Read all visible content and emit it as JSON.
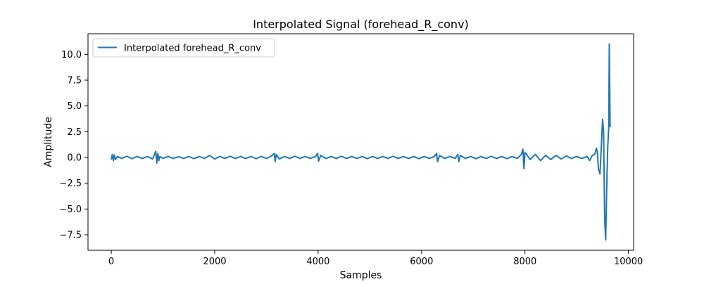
{
  "chart_data": {
    "type": "line",
    "title": "Interpolated Signal (forehead_R_conv)",
    "xlabel": "Samples",
    "ylabel": "Amplitude",
    "xlim": [
      -450,
      10100
    ],
    "ylim": [
      -9.0,
      12.0
    ],
    "xticks": [
      0,
      2000,
      4000,
      6000,
      8000,
      10000
    ],
    "xtick_labels": [
      "0",
      "2000",
      "4000",
      "6000",
      "8000",
      "10000"
    ],
    "yticks": [
      -7.5,
      -5.0,
      -2.5,
      0.0,
      2.5,
      5.0,
      7.5,
      10.0
    ],
    "ytick_labels": [
      "−7.5",
      "−5.0",
      "−2.5",
      "0.0",
      "2.5",
      "5.0",
      "7.5",
      "10.0"
    ],
    "grid": false,
    "legend_position": "top-left",
    "series": [
      {
        "name": "Interpolated forehead_R_conv",
        "color": "#1f77b4",
        "x": [
          0,
          20,
          40,
          60,
          80,
          120,
          200,
          300,
          400,
          500,
          600,
          700,
          800,
          860,
          880,
          900,
          920,
          940,
          1000,
          1100,
          1200,
          1300,
          1400,
          1500,
          1600,
          1700,
          1800,
          1900,
          2000,
          2100,
          2200,
          2300,
          2400,
          2500,
          2600,
          2700,
          2800,
          2900,
          3000,
          3100,
          3150,
          3170,
          3190,
          3250,
          3350,
          3450,
          3550,
          3650,
          3750,
          3850,
          3950,
          3990,
          4010,
          4050,
          4150,
          4250,
          4350,
          4450,
          4550,
          4650,
          4750,
          4850,
          4950,
          5050,
          5150,
          5250,
          5350,
          5450,
          5550,
          5650,
          5750,
          5850,
          5950,
          6050,
          6150,
          6250,
          6290,
          6310,
          6350,
          6450,
          6550,
          6650,
          6700,
          6720,
          6750,
          6850,
          6950,
          7050,
          7150,
          7250,
          7350,
          7450,
          7550,
          7650,
          7750,
          7850,
          7930,
          7960,
          7980,
          8000,
          8100,
          8200,
          8300,
          8400,
          8500,
          8600,
          8700,
          8800,
          8900,
          9000,
          9100,
          9200,
          9250,
          9300,
          9350,
          9380,
          9400,
          9420,
          9450,
          9480,
          9500,
          9520,
          9540,
          9560,
          9580,
          9600,
          9620,
          9630,
          9640,
          9645,
          9650
        ],
        "y": [
          -0.2,
          0.3,
          -0.3,
          0.25,
          -0.2,
          0.1,
          -0.1,
          0.12,
          -0.12,
          0.1,
          -0.1,
          0.1,
          -0.15,
          0.6,
          -0.55,
          0.4,
          -0.3,
          0.1,
          -0.1,
          0.1,
          -0.1,
          0.08,
          -0.1,
          0.1,
          -0.12,
          0.1,
          -0.1,
          0.2,
          -0.15,
          0.1,
          -0.1,
          0.12,
          -0.1,
          0.1,
          -0.1,
          0.1,
          -0.12,
          0.1,
          -0.1,
          0.15,
          0.4,
          -0.4,
          0.3,
          -0.15,
          0.1,
          -0.1,
          0.12,
          -0.1,
          0.1,
          -0.1,
          0.1,
          0.4,
          -0.35,
          0.2,
          -0.1,
          0.1,
          -0.1,
          0.12,
          -0.1,
          0.1,
          -0.1,
          0.1,
          -0.12,
          0.1,
          -0.1,
          0.1,
          -0.1,
          0.12,
          -0.1,
          0.1,
          -0.1,
          0.1,
          -0.12,
          0.1,
          -0.1,
          0.1,
          0.4,
          -0.4,
          0.2,
          -0.1,
          0.1,
          -0.1,
          0.3,
          -0.4,
          0.2,
          -0.1,
          0.1,
          -0.12,
          0.1,
          -0.1,
          0.12,
          -0.1,
          0.1,
          -0.12,
          0.1,
          -0.1,
          0.3,
          0.8,
          -1.1,
          0.5,
          -0.2,
          0.3,
          -0.3,
          0.2,
          -0.2,
          0.2,
          -0.15,
          0.15,
          -0.1,
          0.1,
          -0.1,
          0.1,
          -0.3,
          0.2,
          0.3,
          0.9,
          0.5,
          -1.1,
          -1.6,
          1.5,
          3.7,
          2.5,
          -6.0,
          -8.0,
          -3.0,
          1.0,
          3.0,
          11.0,
          6.0,
          3.0,
          3.2
        ]
      }
    ]
  }
}
